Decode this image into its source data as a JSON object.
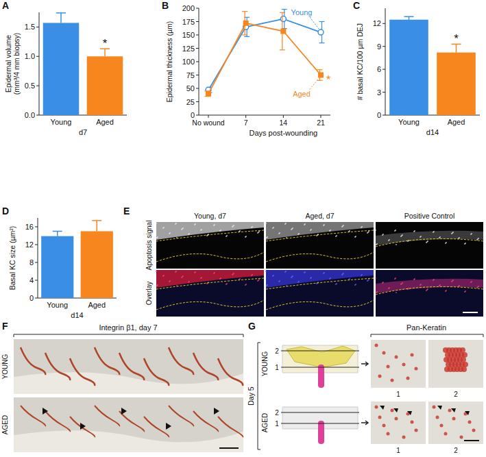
{
  "chart_data": [
    {
      "panel": "A",
      "type": "bar",
      "categories": [
        "Young",
        "Aged"
      ],
      "values": [
        1.57,
        1.0
      ],
      "errors": [
        0.17,
        0.13
      ],
      "colors": [
        "#3a8ee6",
        "#f7861e"
      ],
      "ylim": [
        0,
        1.75
      ],
      "yticks": [
        {
          "value": 0,
          "label": "0.0"
        },
        {
          "value": 0.5,
          "label": "0.5"
        },
        {
          "value": 1,
          "label": "1.0"
        },
        {
          "value": 1.5,
          "label": "1.5"
        }
      ],
      "ylabel": [
        "Epidermal volume",
        "(mm³/4 mm biopsy)"
      ],
      "xlabel": "d7",
      "annotations": [
        {
          "text": "*",
          "category": "Aged"
        }
      ]
    },
    {
      "panel": "B",
      "type": "line",
      "categories": [
        "No wound",
        "7",
        "14",
        "21"
      ],
      "xlabel": "Days post-wounding",
      "ylabel": [
        "Epidermal thickness (µm)"
      ],
      "ylim": [
        0,
        200
      ],
      "yticks": [
        0,
        25,
        50,
        75,
        100,
        125,
        150,
        175,
        200
      ],
      "series": [
        {
          "name": "Young",
          "color": "#3a8ee6",
          "marker": "open-circle",
          "line_style": "solid",
          "values": [
            47,
            165,
            180,
            155
          ],
          "errors": [
            5,
            18,
            18,
            20
          ]
        },
        {
          "name": "Aged",
          "color": "#f7861e",
          "marker": "square",
          "line_style": "solid",
          "values": [
            40,
            172,
            157,
            75
          ],
          "errors": [
            5,
            22,
            35,
            10
          ]
        }
      ],
      "annotations": [
        {
          "text": "*",
          "category": "21",
          "series": "Aged"
        }
      ]
    },
    {
      "panel": "C",
      "type": "bar",
      "categories": [
        "Young",
        "Aged"
      ],
      "values": [
        12.5,
        8.2
      ],
      "errors": [
        0.4,
        1.1
      ],
      "colors": [
        "#3a8ee6",
        "#f7861e"
      ],
      "ylim": [
        0,
        14
      ],
      "yticks": [
        0,
        3,
        6,
        9,
        12
      ],
      "ylabel": [
        "# basal KC/100 µm DEJ"
      ],
      "xlabel": "d14",
      "annotations": [
        {
          "text": "*",
          "category": "Aged"
        }
      ]
    },
    {
      "panel": "D",
      "type": "bar",
      "categories": [
        "Young",
        "Aged"
      ],
      "values": [
        13.9,
        15.0
      ],
      "errors": [
        1.1,
        2.4
      ],
      "colors": [
        "#3a8ee6",
        "#f7861e"
      ],
      "ylim": [
        0,
        18
      ],
      "yticks": [
        0,
        4,
        8,
        12,
        16
      ],
      "ylabel": [
        "Basal KC size (µm²)"
      ],
      "xlabel": "d14",
      "annotations": []
    }
  ],
  "image_panels": {
    "E": {
      "panel": "E",
      "columns": [
        "Young, d7",
        "Aged, d7",
        "Positive Control"
      ],
      "rows": [
        "Apoptosis signal",
        "Overlay"
      ]
    },
    "F": {
      "panel": "F",
      "title": "Integrin β1, day 7",
      "rows": [
        "YOUNG",
        "AGED"
      ]
    },
    "G": {
      "panel": "G",
      "condition": "Day 5",
      "rows": [
        "YOUNG",
        "AGED"
      ],
      "planes": [
        "1",
        "2"
      ],
      "title": "Pan-Keratin",
      "columns": [
        "1",
        "2"
      ]
    }
  }
}
